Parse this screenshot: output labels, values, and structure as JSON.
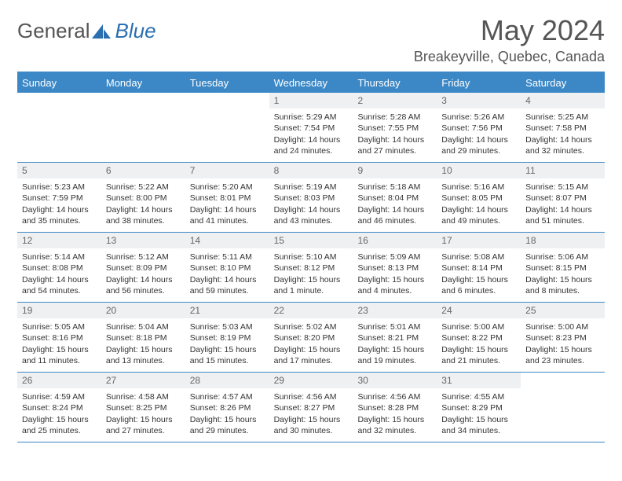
{
  "brand": {
    "part1": "General",
    "part2": "Blue"
  },
  "title": "May 2024",
  "location": "Breakeyville, Quebec, Canada",
  "colors": {
    "header_bar": "#3c88c6",
    "day_num_bg": "#eef0f2",
    "text": "#333333",
    "title_text": "#555555",
    "logo_accent": "#2b6fb0"
  },
  "day_labels": [
    "Sunday",
    "Monday",
    "Tuesday",
    "Wednesday",
    "Thursday",
    "Friday",
    "Saturday"
  ],
  "weeks": [
    [
      {
        "n": "",
        "sr": "",
        "ss": "",
        "dl": ""
      },
      {
        "n": "",
        "sr": "",
        "ss": "",
        "dl": ""
      },
      {
        "n": "",
        "sr": "",
        "ss": "",
        "dl": ""
      },
      {
        "n": "1",
        "sr": "Sunrise: 5:29 AM",
        "ss": "Sunset: 7:54 PM",
        "dl": "Daylight: 14 hours and 24 minutes."
      },
      {
        "n": "2",
        "sr": "Sunrise: 5:28 AM",
        "ss": "Sunset: 7:55 PM",
        "dl": "Daylight: 14 hours and 27 minutes."
      },
      {
        "n": "3",
        "sr": "Sunrise: 5:26 AM",
        "ss": "Sunset: 7:56 PM",
        "dl": "Daylight: 14 hours and 29 minutes."
      },
      {
        "n": "4",
        "sr": "Sunrise: 5:25 AM",
        "ss": "Sunset: 7:58 PM",
        "dl": "Daylight: 14 hours and 32 minutes."
      }
    ],
    [
      {
        "n": "5",
        "sr": "Sunrise: 5:23 AM",
        "ss": "Sunset: 7:59 PM",
        "dl": "Daylight: 14 hours and 35 minutes."
      },
      {
        "n": "6",
        "sr": "Sunrise: 5:22 AM",
        "ss": "Sunset: 8:00 PM",
        "dl": "Daylight: 14 hours and 38 minutes."
      },
      {
        "n": "7",
        "sr": "Sunrise: 5:20 AM",
        "ss": "Sunset: 8:01 PM",
        "dl": "Daylight: 14 hours and 41 minutes."
      },
      {
        "n": "8",
        "sr": "Sunrise: 5:19 AM",
        "ss": "Sunset: 8:03 PM",
        "dl": "Daylight: 14 hours and 43 minutes."
      },
      {
        "n": "9",
        "sr": "Sunrise: 5:18 AM",
        "ss": "Sunset: 8:04 PM",
        "dl": "Daylight: 14 hours and 46 minutes."
      },
      {
        "n": "10",
        "sr": "Sunrise: 5:16 AM",
        "ss": "Sunset: 8:05 PM",
        "dl": "Daylight: 14 hours and 49 minutes."
      },
      {
        "n": "11",
        "sr": "Sunrise: 5:15 AM",
        "ss": "Sunset: 8:07 PM",
        "dl": "Daylight: 14 hours and 51 minutes."
      }
    ],
    [
      {
        "n": "12",
        "sr": "Sunrise: 5:14 AM",
        "ss": "Sunset: 8:08 PM",
        "dl": "Daylight: 14 hours and 54 minutes."
      },
      {
        "n": "13",
        "sr": "Sunrise: 5:12 AM",
        "ss": "Sunset: 8:09 PM",
        "dl": "Daylight: 14 hours and 56 minutes."
      },
      {
        "n": "14",
        "sr": "Sunrise: 5:11 AM",
        "ss": "Sunset: 8:10 PM",
        "dl": "Daylight: 14 hours and 59 minutes."
      },
      {
        "n": "15",
        "sr": "Sunrise: 5:10 AM",
        "ss": "Sunset: 8:12 PM",
        "dl": "Daylight: 15 hours and 1 minute."
      },
      {
        "n": "16",
        "sr": "Sunrise: 5:09 AM",
        "ss": "Sunset: 8:13 PM",
        "dl": "Daylight: 15 hours and 4 minutes."
      },
      {
        "n": "17",
        "sr": "Sunrise: 5:08 AM",
        "ss": "Sunset: 8:14 PM",
        "dl": "Daylight: 15 hours and 6 minutes."
      },
      {
        "n": "18",
        "sr": "Sunrise: 5:06 AM",
        "ss": "Sunset: 8:15 PM",
        "dl": "Daylight: 15 hours and 8 minutes."
      }
    ],
    [
      {
        "n": "19",
        "sr": "Sunrise: 5:05 AM",
        "ss": "Sunset: 8:16 PM",
        "dl": "Daylight: 15 hours and 11 minutes."
      },
      {
        "n": "20",
        "sr": "Sunrise: 5:04 AM",
        "ss": "Sunset: 8:18 PM",
        "dl": "Daylight: 15 hours and 13 minutes."
      },
      {
        "n": "21",
        "sr": "Sunrise: 5:03 AM",
        "ss": "Sunset: 8:19 PM",
        "dl": "Daylight: 15 hours and 15 minutes."
      },
      {
        "n": "22",
        "sr": "Sunrise: 5:02 AM",
        "ss": "Sunset: 8:20 PM",
        "dl": "Daylight: 15 hours and 17 minutes."
      },
      {
        "n": "23",
        "sr": "Sunrise: 5:01 AM",
        "ss": "Sunset: 8:21 PM",
        "dl": "Daylight: 15 hours and 19 minutes."
      },
      {
        "n": "24",
        "sr": "Sunrise: 5:00 AM",
        "ss": "Sunset: 8:22 PM",
        "dl": "Daylight: 15 hours and 21 minutes."
      },
      {
        "n": "25",
        "sr": "Sunrise: 5:00 AM",
        "ss": "Sunset: 8:23 PM",
        "dl": "Daylight: 15 hours and 23 minutes."
      }
    ],
    [
      {
        "n": "26",
        "sr": "Sunrise: 4:59 AM",
        "ss": "Sunset: 8:24 PM",
        "dl": "Daylight: 15 hours and 25 minutes."
      },
      {
        "n": "27",
        "sr": "Sunrise: 4:58 AM",
        "ss": "Sunset: 8:25 PM",
        "dl": "Daylight: 15 hours and 27 minutes."
      },
      {
        "n": "28",
        "sr": "Sunrise: 4:57 AM",
        "ss": "Sunset: 8:26 PM",
        "dl": "Daylight: 15 hours and 29 minutes."
      },
      {
        "n": "29",
        "sr": "Sunrise: 4:56 AM",
        "ss": "Sunset: 8:27 PM",
        "dl": "Daylight: 15 hours and 30 minutes."
      },
      {
        "n": "30",
        "sr": "Sunrise: 4:56 AM",
        "ss": "Sunset: 8:28 PM",
        "dl": "Daylight: 15 hours and 32 minutes."
      },
      {
        "n": "31",
        "sr": "Sunrise: 4:55 AM",
        "ss": "Sunset: 8:29 PM",
        "dl": "Daylight: 15 hours and 34 minutes."
      },
      {
        "n": "",
        "sr": "",
        "ss": "",
        "dl": ""
      }
    ]
  ]
}
